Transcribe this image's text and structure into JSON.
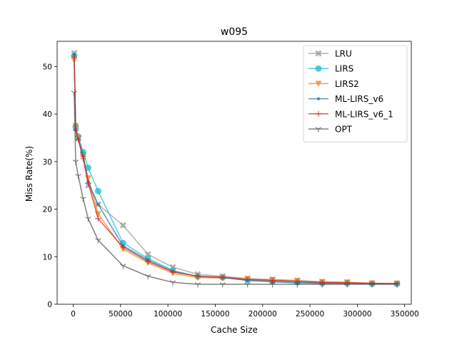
{
  "chart_data": {
    "type": "line",
    "title": "w095",
    "xlabel": "Cache Size",
    "ylabel": "Miss Rate(%)",
    "xlim": [
      -17000,
      357000
    ],
    "ylim": [
      0,
      55.3
    ],
    "xticks": [
      0,
      50000,
      100000,
      150000,
      200000,
      250000,
      300000,
      350000
    ],
    "xtick_labels": [
      "0",
      "50000",
      "100000",
      "150000",
      "200000",
      "250000",
      "300000",
      "350000"
    ],
    "yticks": [
      0,
      10,
      20,
      30,
      40,
      50
    ],
    "ytick_labels": [
      "0",
      "10",
      "20",
      "30",
      "40",
      "50"
    ],
    "grid": false,
    "legend_position": "top-right",
    "x": [
      1000,
      2600,
      5300,
      10500,
      15800,
      26300,
      52600,
      78900,
      105200,
      131500,
      157800,
      184100,
      210400,
      236700,
      263000,
      289300,
      315600,
      341900
    ],
    "series": [
      {
        "name": "LRU",
        "color": "#999999",
        "marker": "X",
        "values": [
          52.8,
          37.2,
          34.9,
          31.5,
          25.0,
          21.0,
          16.6,
          10.5,
          7.8,
          6.3,
          5.9,
          5.4,
          5.2,
          5.0,
          4.7,
          4.6,
          4.4,
          4.4
        ]
      },
      {
        "name": "LIRS",
        "color": "#17BECF",
        "marker": "o",
        "values": [
          52.3,
          37.3,
          35.3,
          32.0,
          28.7,
          23.8,
          12.9,
          9.6,
          7.1,
          5.8,
          5.6,
          5.1,
          4.9,
          4.6,
          4.4,
          4.4,
          4.3,
          4.3
        ]
      },
      {
        "name": "LIRS2",
        "color": "#FF7F0E",
        "marker": "v",
        "values": [
          51.3,
          37.5,
          35.0,
          31.0,
          26.5,
          19.0,
          11.6,
          8.7,
          6.5,
          5.6,
          5.5,
          5.3,
          5.1,
          4.9,
          4.7,
          4.6,
          4.4,
          4.3
        ]
      },
      {
        "name": "ML-LIRS_v6",
        "color": "#1F77B4",
        "marker": ".",
        "values": [
          52.5,
          36.8,
          34.8,
          31.2,
          25.8,
          21.0,
          12.3,
          9.3,
          6.9,
          5.9,
          5.6,
          5.0,
          4.7,
          4.5,
          4.4,
          4.4,
          4.3,
          4.3
        ]
      },
      {
        "name": "ML-LIRS_v6_1",
        "color": "#D62728",
        "marker": "+",
        "values": [
          52.0,
          36.5,
          34.6,
          30.6,
          25.5,
          18.0,
          12.0,
          9.0,
          6.8,
          5.9,
          5.7,
          5.2,
          5.0,
          4.8,
          4.6,
          4.5,
          4.4,
          4.3
        ]
      },
      {
        "name": "OPT",
        "color": "#555555",
        "marker": "1",
        "values": [
          44.5,
          30.0,
          27.0,
          22.2,
          18.0,
          13.5,
          8.1,
          5.9,
          4.6,
          4.2,
          4.2,
          4.2,
          4.2,
          4.2,
          4.2,
          4.2,
          4.2,
          4.2
        ]
      }
    ]
  }
}
